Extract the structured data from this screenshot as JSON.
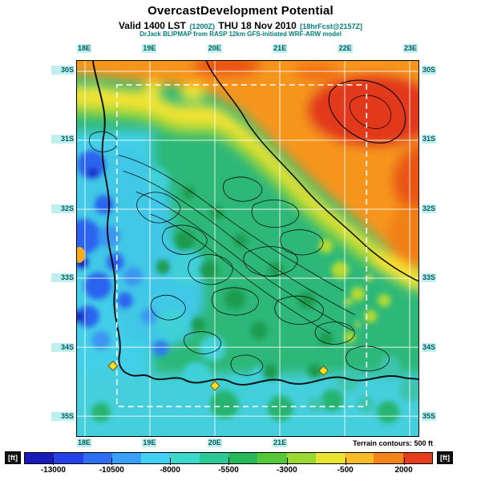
{
  "header": {
    "title": "OvercastDevelopment Potential",
    "valid": {
      "part1": "Valid 1400 LST",
      "part2": "(1200Z)",
      "part3": "THU 18 Nov 2010",
      "part4": "[18hrFcst@2157Z]"
    },
    "model": "DrJack BLIPMAP from RASP 12km GFS-initiated WRF-ARW model"
  },
  "map": {
    "top_lon_labels": [
      "18E",
      "19E",
      "20E",
      "21E",
      "22E",
      "23E"
    ],
    "bottom_lon_labels": [
      "18E",
      "19E",
      "20E",
      "21E"
    ],
    "left_lat_labels": [
      "30S",
      "31S",
      "32S",
      "33S",
      "34S",
      "35S"
    ],
    "right_lat_labels": [
      "30S",
      "31S",
      "32S",
      "33S",
      "34S",
      "35S"
    ]
  },
  "footer": {
    "terrain_note": "Terrain contours: 500 ft",
    "unit_left": "[ft]",
    "unit_right": "[ft]"
  },
  "colorbar": {
    "ticks": [
      "-13000",
      "-10500",
      "-8000",
      "-5500",
      "-3000",
      "-500",
      "2000"
    ],
    "colors": [
      "#1a1ab8",
      "#2442e8",
      "#2e6ef4",
      "#38a0f8",
      "#44d0f4",
      "#3cd8cc",
      "#2cc896",
      "#28b85c",
      "#54c838",
      "#9cd834",
      "#e8e430",
      "#f8bc28",
      "#f48418",
      "#e43c1c"
    ]
  },
  "chart_data": {
    "type": "heatmap",
    "title": "OvercastDevelopment Potential",
    "subtitle": "Valid 1400 LST (1200Z) THU 18 Nov 2010 [18hrFcst@2157Z]",
    "source": "DrJack BLIPMAP from RASP 12km GFS-initiated WRF-ARW model",
    "x_axis": {
      "label": "longitude",
      "ticks": [
        "18E",
        "19E",
        "20E",
        "21E",
        "22E",
        "23E"
      ]
    },
    "y_axis": {
      "label": "latitude",
      "ticks": [
        "30S",
        "31S",
        "32S",
        "33S",
        "34S",
        "35S"
      ]
    },
    "colorbar": {
      "unit": "ft",
      "tick_values": [
        -13000,
        -10500,
        -8000,
        -5500,
        -3000,
        -500,
        2000
      ],
      "colors": [
        "#1a1ab8",
        "#2442e8",
        "#2e6ef4",
        "#38a0f8",
        "#44d0f4",
        "#3cd8cc",
        "#2cc896",
        "#28b85c",
        "#54c838",
        "#9cd834",
        "#e8e430",
        "#f8bc28",
        "#f48418",
        "#e43c1c"
      ]
    },
    "annotations": [
      "Terrain contours: 500 ft"
    ],
    "layout": {
      "grid": true,
      "grid_color": "#ffffff",
      "domain_box": "white dashed rectangle",
      "contour_lines": "black, 500 ft terrain interval"
    },
    "field_summary": "High positive potential (orange/red) over the northeastern interior; near-zero (green/teal) across the central Cape fold mountains; strongly negative (cyan/blue, below -8000 ft) along the west coast and southern ocean; isolated yellow maxima markers near the south coast."
  }
}
